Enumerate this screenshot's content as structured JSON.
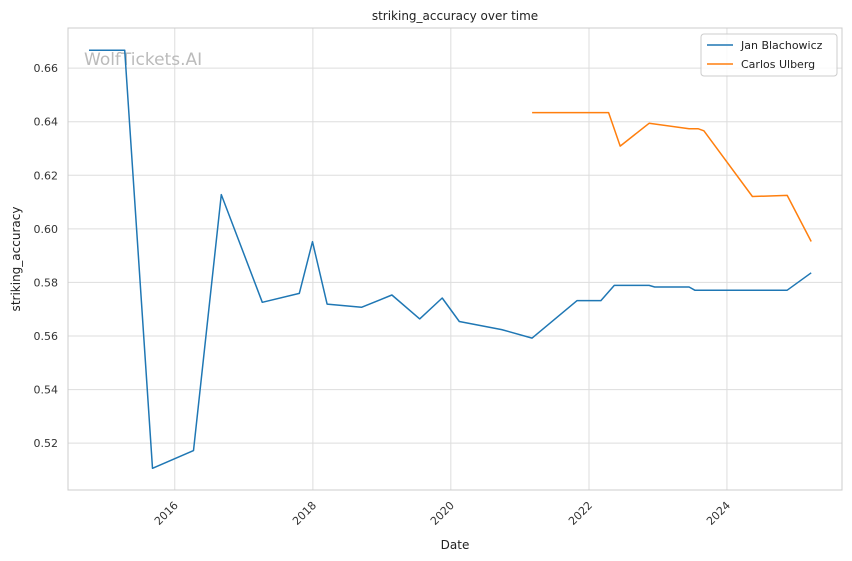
{
  "chart_data": {
    "type": "line",
    "title": "striking_accuracy over time",
    "xlabel": "Date",
    "ylabel": "striking_accuracy",
    "watermark": "WolfTickets.AI",
    "x_ticks": [
      "2016",
      "2018",
      "2020",
      "2022",
      "2024"
    ],
    "y_ticks": [
      "0.52",
      "0.54",
      "0.56",
      "0.58",
      "0.60",
      "0.62",
      "0.64",
      "0.66"
    ],
    "xlim": [
      "2014-06-15",
      "2025-09-01"
    ],
    "ylim": [
      0.5025,
      0.675
    ],
    "grid": true,
    "legend_position": "top-right",
    "series": [
      {
        "name": "Jan Blachowicz",
        "color": "#1f77b4",
        "points": [
          [
            "2014-10-04",
            0.6667
          ],
          [
            "2015-04-11",
            0.6667
          ],
          [
            "2015-09-05",
            0.5106
          ],
          [
            "2016-04-09",
            0.5172
          ],
          [
            "2016-09-03",
            0.6128
          ],
          [
            "2017-04-08",
            0.5726
          ],
          [
            "2017-10-21",
            0.5759
          ],
          [
            "2017-12-30",
            0.5952
          ],
          [
            "2018-03-17",
            0.5719
          ],
          [
            "2018-09-15",
            0.5707
          ],
          [
            "2019-02-23",
            0.5753
          ],
          [
            "2019-07-20",
            0.5664
          ],
          [
            "2019-11-16",
            0.5742
          ],
          [
            "2020-02-15",
            0.5654
          ],
          [
            "2020-09-26",
            0.5624
          ],
          [
            "2021-03-06",
            0.5592
          ],
          [
            "2021-10-30",
            0.5732
          ],
          [
            "2022-03-05",
            0.5732
          ],
          [
            "2022-05-15",
            0.5789
          ],
          [
            "2022-11-15",
            0.5789
          ],
          [
            "2022-12-15",
            0.5783
          ],
          [
            "2023-06-15",
            0.5783
          ],
          [
            "2023-07-15",
            0.5771
          ],
          [
            "2024-11-15",
            0.5771
          ],
          [
            "2025-03-22",
            0.5836
          ]
        ]
      },
      {
        "name": "Carlos Ulberg",
        "color": "#ff7f0e",
        "points": [
          [
            "2021-03-06",
            0.6434
          ],
          [
            "2022-04-15",
            0.6434
          ],
          [
            "2022-06-15",
            0.6309
          ],
          [
            "2022-11-15",
            0.6394
          ],
          [
            "2023-06-15",
            0.6374
          ],
          [
            "2023-08-01",
            0.6374
          ],
          [
            "2023-09-01",
            0.6366
          ],
          [
            "2024-05-15",
            0.6121
          ],
          [
            "2024-11-15",
            0.6125
          ],
          [
            "2025-03-22",
            0.5953
          ]
        ]
      }
    ]
  }
}
